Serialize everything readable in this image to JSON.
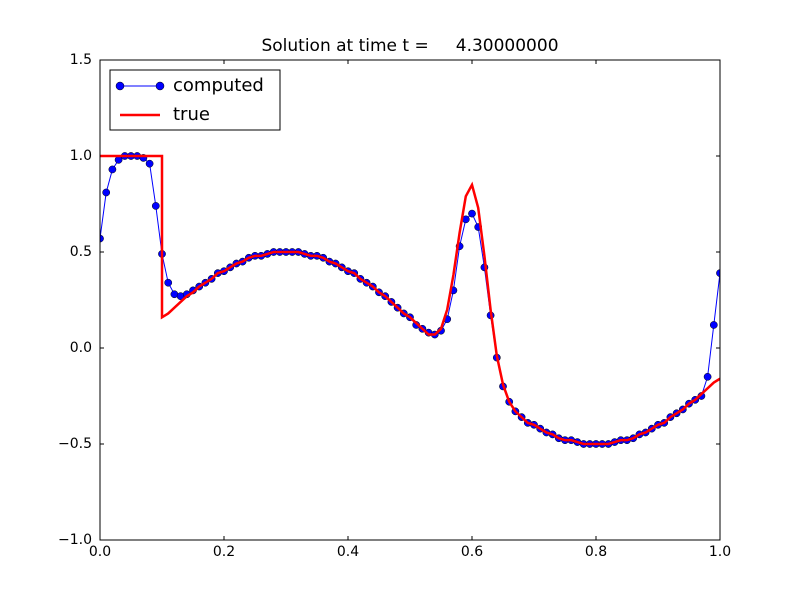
{
  "chart_data": {
    "type": "line",
    "title": "Solution at time t =     4.30000000",
    "xlim": [
      0,
      1
    ],
    "ylim": [
      -1,
      1.5
    ],
    "xticks": [
      {
        "value": 0,
        "label": "0.0"
      },
      0.2,
      0.4,
      0.6,
      0.8,
      {
        "value": 1,
        "label": "1.0"
      }
    ],
    "yticks": [
      {
        "value": -1,
        "label": "−1.0"
      },
      {
        "value": -0.5,
        "label": "−0.5"
      },
      {
        "value": 0,
        "label": "0.0"
      },
      0.5,
      {
        "value": 1,
        "label": "1.0"
      },
      1.5
    ],
    "legend": "upper left",
    "series": [
      {
        "name": "computed",
        "color": "#0000ff",
        "marker": "circle",
        "x": [
          0,
          0.01,
          0.02,
          0.03,
          0.04,
          0.05,
          0.06,
          0.07,
          0.08,
          0.09,
          0.1,
          0.11,
          0.12,
          0.13,
          0.14,
          0.15,
          0.16,
          0.17,
          0.18,
          0.19,
          0.2,
          0.21,
          0.22,
          0.23,
          0.24,
          0.25,
          0.26,
          0.27,
          0.28,
          0.29,
          0.3,
          0.31,
          0.32,
          0.33,
          0.34,
          0.35,
          0.36,
          0.37,
          0.38,
          0.39,
          0.4,
          0.41,
          0.42,
          0.43,
          0.44,
          0.45,
          0.46,
          0.47,
          0.48,
          0.49,
          0.5,
          0.51,
          0.52,
          0.53,
          0.54,
          0.55,
          0.56,
          0.57,
          0.58,
          0.59,
          0.6,
          0.61,
          0.62,
          0.63,
          0.64,
          0.65,
          0.66,
          0.67,
          0.68,
          0.69,
          0.7,
          0.71,
          0.72,
          0.73,
          0.74,
          0.75,
          0.76,
          0.77,
          0.78,
          0.79,
          0.8,
          0.81,
          0.82,
          0.83,
          0.84,
          0.85,
          0.86,
          0.87,
          0.88,
          0.89,
          0.9,
          0.91,
          0.92,
          0.93,
          0.94,
          0.95,
          0.96,
          0.97,
          0.98,
          0.99,
          1.0
        ],
        "values": [
          0.57,
          0.81,
          0.93,
          0.98,
          1.0,
          1.0,
          1.0,
          0.99,
          0.96,
          0.74,
          0.49,
          0.34,
          0.28,
          0.27,
          0.28,
          0.3,
          0.32,
          0.34,
          0.36,
          0.39,
          0.4,
          0.42,
          0.44,
          0.45,
          0.47,
          0.48,
          0.48,
          0.49,
          0.5,
          0.5,
          0.5,
          0.5,
          0.5,
          0.49,
          0.48,
          0.48,
          0.47,
          0.45,
          0.44,
          0.42,
          0.4,
          0.39,
          0.36,
          0.34,
          0.32,
          0.29,
          0.27,
          0.24,
          0.21,
          0.18,
          0.16,
          0.12,
          0.1,
          0.08,
          0.07,
          0.09,
          0.15,
          0.3,
          0.53,
          0.67,
          0.7,
          0.63,
          0.42,
          0.17,
          -0.05,
          -0.2,
          -0.28,
          -0.33,
          -0.36,
          -0.39,
          -0.4,
          -0.42,
          -0.44,
          -0.45,
          -0.47,
          -0.48,
          -0.48,
          -0.49,
          -0.5,
          -0.5,
          -0.5,
          -0.5,
          -0.5,
          -0.49,
          -0.48,
          -0.48,
          -0.47,
          -0.45,
          -0.44,
          -0.42,
          -0.4,
          -0.39,
          -0.36,
          -0.34,
          -0.32,
          -0.29,
          -0.27,
          -0.25,
          -0.15,
          0.12,
          0.39
        ]
      },
      {
        "name": "true",
        "color": "#ff0000",
        "x": [
          0,
          0.01,
          0.02,
          0.03,
          0.04,
          0.05,
          0.06,
          0.07,
          0.08,
          0.09,
          0.1,
          0.1,
          0.11,
          0.12,
          0.13,
          0.14,
          0.15,
          0.16,
          0.17,
          0.18,
          0.19,
          0.2,
          0.21,
          0.22,
          0.23,
          0.24,
          0.25,
          0.26,
          0.27,
          0.28,
          0.29,
          0.3,
          0.31,
          0.32,
          0.33,
          0.34,
          0.35,
          0.36,
          0.37,
          0.38,
          0.39,
          0.4,
          0.41,
          0.42,
          0.43,
          0.44,
          0.45,
          0.46,
          0.47,
          0.48,
          0.49,
          0.5,
          0.51,
          0.52,
          0.53,
          0.54,
          0.55,
          0.56,
          0.57,
          0.58,
          0.59,
          0.6,
          0.61,
          0.62,
          0.63,
          0.64,
          0.65,
          0.66,
          0.67,
          0.68,
          0.69,
          0.7,
          0.71,
          0.72,
          0.73,
          0.74,
          0.75,
          0.76,
          0.77,
          0.78,
          0.79,
          0.8,
          0.81,
          0.82,
          0.83,
          0.84,
          0.85,
          0.86,
          0.87,
          0.88,
          0.89,
          0.9,
          0.91,
          0.92,
          0.93,
          0.94,
          0.95,
          0.96,
          0.97,
          0.98,
          0.99,
          1.0
        ],
        "values": [
          1.0,
          1.0,
          1.0,
          1.0,
          1.0,
          1.0,
          1.0,
          1.0,
          1.0,
          1.0,
          1.0,
          0.16,
          0.18,
          0.21,
          0.24,
          0.27,
          0.29,
          0.32,
          0.34,
          0.36,
          0.39,
          0.4,
          0.42,
          0.44,
          0.45,
          0.47,
          0.48,
          0.48,
          0.49,
          0.5,
          0.5,
          0.5,
          0.5,
          0.5,
          0.49,
          0.48,
          0.48,
          0.47,
          0.45,
          0.44,
          0.42,
          0.4,
          0.39,
          0.36,
          0.34,
          0.32,
          0.29,
          0.27,
          0.24,
          0.21,
          0.18,
          0.16,
          0.13,
          0.1,
          0.07,
          0.07,
          0.1,
          0.2,
          0.38,
          0.6,
          0.79,
          0.85,
          0.73,
          0.48,
          0.2,
          -0.04,
          -0.19,
          -0.28,
          -0.33,
          -0.36,
          -0.39,
          -0.4,
          -0.42,
          -0.44,
          -0.45,
          -0.47,
          -0.48,
          -0.48,
          -0.49,
          -0.5,
          -0.5,
          -0.5,
          -0.5,
          -0.5,
          -0.49,
          -0.48,
          -0.48,
          -0.47,
          -0.45,
          -0.44,
          -0.42,
          -0.4,
          -0.39,
          -0.36,
          -0.34,
          -0.32,
          -0.29,
          -0.27,
          -0.24,
          -0.21,
          -0.18,
          -0.16
        ]
      }
    ]
  }
}
